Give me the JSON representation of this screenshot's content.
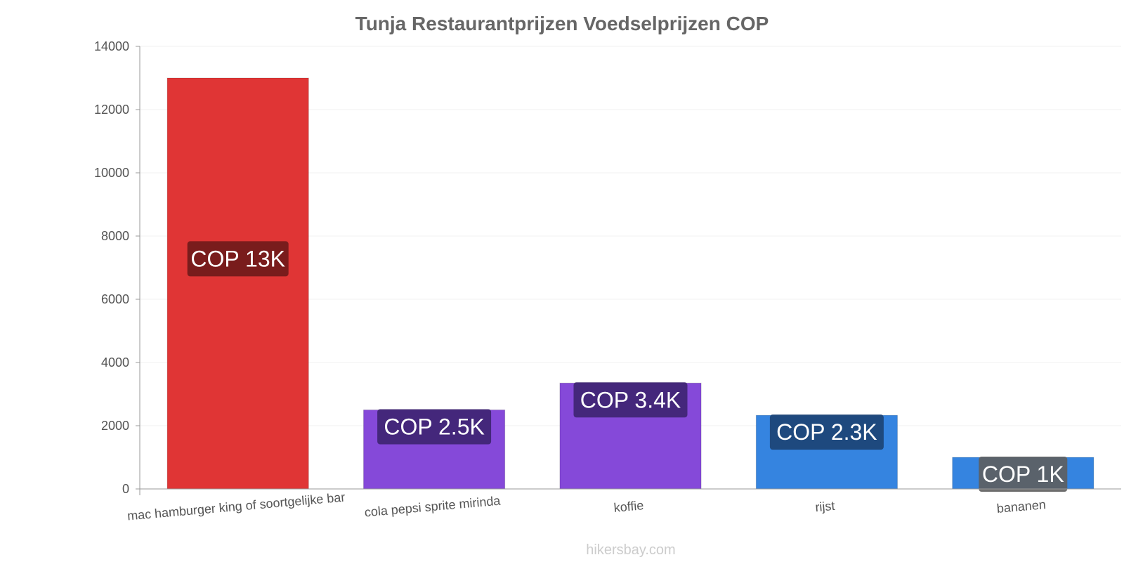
{
  "chart_data": {
    "type": "bar",
    "title": "Tunja Restaurantprijzen Voedselprijzen COP",
    "categories": [
      "mac hamburger king of soortgelijke bar",
      "cola pepsi sprite mirinda",
      "koffie",
      "rijst",
      "bananen"
    ],
    "values": [
      13000,
      2500,
      3350,
      2330,
      1000
    ],
    "data_labels": [
      "COP 13K",
      "COP 2.5K",
      "COP 3.4K",
      "COP 2.3K",
      "COP 1K"
    ],
    "colors": [
      "#e03535",
      "#8549d9",
      "#8549d9",
      "#3584e0",
      "#3584e0"
    ],
    "label_bg_colors": [
      "#6e1a1a",
      "#3d2470",
      "#3d2470",
      "#1c4273",
      "#5e5e5e"
    ],
    "yticks": [
      0,
      2000,
      4000,
      6000,
      8000,
      10000,
      12000,
      14000
    ],
    "ylim": [
      0,
      14000
    ],
    "grid": true
  },
  "watermark": "hikersbay.com"
}
